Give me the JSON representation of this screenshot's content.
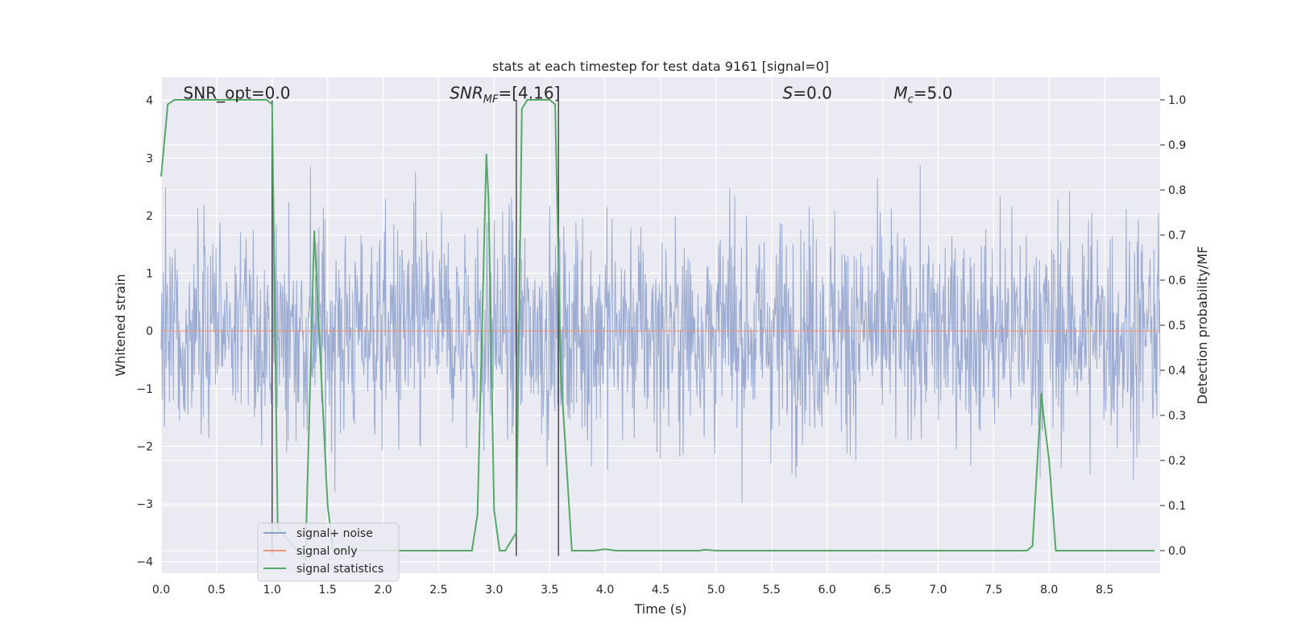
{
  "chart_data": {
    "type": "line",
    "title": "stats at each timestep for test data 9161 [signal=0]",
    "xlabel": "Time (s)",
    "ylabel": "Whitened strain",
    "y2label": "Detection probability/MF",
    "xlim": [
      0,
      9.0
    ],
    "ylim": [
      -4.2,
      4.4
    ],
    "y2lim": [
      -0.05,
      1.05
    ],
    "xticks": [
      0.0,
      0.5,
      1.0,
      1.5,
      2.0,
      2.5,
      3.0,
      3.5,
      4.0,
      4.5,
      5.0,
      5.5,
      6.0,
      6.5,
      7.0,
      7.5,
      8.0,
      8.5
    ],
    "xtick_labels": [
      "0.0",
      "0.5",
      "1.0",
      "1.5",
      "2.0",
      "2.5",
      "3.0",
      "3.5",
      "4.0",
      "4.5",
      "5.0",
      "5.5",
      "6.0",
      "6.5",
      "7.0",
      "7.5",
      "8.0",
      "8.5"
    ],
    "yticks": [
      -4,
      -3,
      -2,
      -1,
      0,
      1,
      2,
      3,
      4
    ],
    "ytick_labels": [
      "−4",
      "−3",
      "−2",
      "−1",
      "0",
      "1",
      "2",
      "3",
      "4"
    ],
    "y2ticks": [
      0.0,
      0.1,
      0.2,
      0.3,
      0.4,
      0.5,
      0.6,
      0.7,
      0.8,
      0.9,
      1.0
    ],
    "y2tick_labels": [
      "0.0",
      "0.1",
      "0.2",
      "0.3",
      "0.4",
      "0.5",
      "0.6",
      "0.7",
      "0.8",
      "0.9",
      "1.0"
    ],
    "grid": true,
    "legend_position": "bottom-left",
    "annotations": [
      {
        "id": "snr-opt",
        "text": "SNR_opt=0.0",
        "x": 0.2,
        "y": 4.1
      },
      {
        "id": "snr-mf",
        "text": "SNR_MF=[4.16]",
        "x": 2.6,
        "y": 4.1
      },
      {
        "id": "s-value",
        "text": "S=0.0",
        "x": 5.6,
        "y": 4.1
      },
      {
        "id": "mc-value",
        "text": "M_c=5.0",
        "x": 6.6,
        "y": 4.1
      }
    ],
    "series": [
      {
        "name": "signal+ noise",
        "color": "#8da0cb",
        "kind": "noise",
        "amplitude_range": [
          -3.6,
          4.0
        ]
      },
      {
        "name": "signal only",
        "color": "#e9967a",
        "values": [
          0,
          0
        ]
      },
      {
        "name": "signal statistics",
        "color": "#55a868",
        "axis": "right",
        "x": [
          0.0,
          0.06,
          0.12,
          0.5,
          0.95,
          1.0,
          1.05,
          1.3,
          1.38,
          1.45,
          1.5,
          1.55,
          2.0,
          2.5,
          2.8,
          2.85,
          2.93,
          2.95,
          3.0,
          3.05,
          3.1,
          3.15,
          3.2,
          3.25,
          3.3,
          3.5,
          3.55,
          3.6,
          3.7,
          3.9,
          4.0,
          4.1,
          4.5,
          4.85,
          4.9,
          5.0,
          6.0,
          7.0,
          7.8,
          7.85,
          7.93,
          7.95,
          8.0,
          8.06,
          8.2,
          8.95
        ],
        "values": [
          0.83,
          0.99,
          1.0,
          1.0,
          1.0,
          0.99,
          0.05,
          -0.02,
          0.71,
          0.35,
          0.1,
          0.0,
          0.0,
          0.0,
          0.0,
          0.08,
          0.88,
          0.78,
          0.09,
          0.0,
          0.0,
          0.02,
          0.04,
          0.98,
          1.0,
          1.0,
          0.99,
          0.4,
          0.0,
          0.0,
          0.003,
          0.0,
          0.0,
          0.0,
          0.002,
          0.0,
          0.0,
          0.0,
          0.0,
          0.01,
          0.35,
          0.3,
          0.2,
          0.0,
          0.0,
          0.0
        ]
      },
      {
        "name": "",
        "color": "#4c4c4c",
        "kind": "vlines",
        "x": [
          1.0,
          3.2,
          3.58
        ],
        "ylim": [
          -3.9,
          4.0
        ]
      }
    ]
  }
}
